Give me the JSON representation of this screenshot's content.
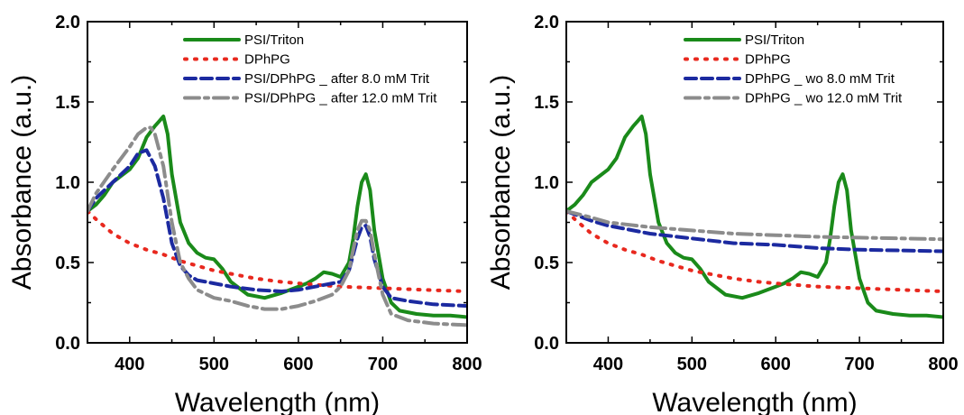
{
  "chart_data": [
    {
      "type": "line",
      "title": "",
      "xlabel": "Wavelength (nm)",
      "ylabel": "Absorbance (a.u.)",
      "xlim": [
        350,
        800
      ],
      "ylim": [
        0.0,
        2.0
      ],
      "xticks": [
        400,
        500,
        600,
        700,
        800
      ],
      "yticks": [
        "0.0",
        "0.5",
        "1.0",
        "1.5",
        "2.0"
      ],
      "grid": false,
      "legend_position": "top-right",
      "series": [
        {
          "name": "PSI/Triton",
          "color": "#1a8a1a",
          "style": "solid",
          "x": [
            350,
            360,
            370,
            380,
            390,
            400,
            410,
            420,
            430,
            435,
            440,
            445,
            450,
            460,
            470,
            480,
            490,
            500,
            510,
            520,
            540,
            560,
            580,
            600,
            610,
            620,
            630,
            640,
            650,
            660,
            665,
            670,
            675,
            680,
            685,
            690,
            700,
            710,
            720,
            740,
            760,
            780,
            800
          ],
          "y": [
            0.82,
            0.86,
            0.92,
            1.0,
            1.04,
            1.08,
            1.15,
            1.28,
            1.35,
            1.38,
            1.41,
            1.3,
            1.05,
            0.75,
            0.62,
            0.56,
            0.53,
            0.52,
            0.46,
            0.38,
            0.3,
            0.28,
            0.31,
            0.35,
            0.37,
            0.4,
            0.44,
            0.43,
            0.41,
            0.5,
            0.65,
            0.85,
            1.0,
            1.05,
            0.95,
            0.7,
            0.4,
            0.25,
            0.2,
            0.18,
            0.17,
            0.17,
            0.16
          ]
        },
        {
          "name": "DPhPG",
          "color": "#e8281e",
          "style": "dotted",
          "x": [
            350,
            360,
            380,
            400,
            420,
            440,
            460,
            480,
            500,
            520,
            550,
            580,
            600,
            650,
            700,
            750,
            800
          ],
          "y": [
            0.82,
            0.77,
            0.68,
            0.62,
            0.58,
            0.55,
            0.51,
            0.48,
            0.45,
            0.43,
            0.4,
            0.38,
            0.37,
            0.35,
            0.34,
            0.33,
            0.32
          ]
        },
        {
          "name": "PSI/DPhPG _ after 8.0 mM Trit",
          "color": "#1c2aa0",
          "style": "dashed",
          "x": [
            350,
            360,
            380,
            400,
            410,
            420,
            430,
            440,
            450,
            460,
            470,
            480,
            500,
            520,
            550,
            580,
            600,
            620,
            640,
            650,
            660,
            665,
            670,
            675,
            680,
            685,
            690,
            700,
            710,
            730,
            760,
            800
          ],
          "y": [
            0.82,
            0.9,
            1.0,
            1.1,
            1.18,
            1.2,
            1.1,
            0.9,
            0.62,
            0.48,
            0.42,
            0.39,
            0.37,
            0.35,
            0.33,
            0.32,
            0.33,
            0.35,
            0.37,
            0.38,
            0.45,
            0.55,
            0.65,
            0.72,
            0.73,
            0.66,
            0.52,
            0.35,
            0.28,
            0.26,
            0.24,
            0.23
          ]
        },
        {
          "name": "PSI/DPhPG _ after 12.0 mM Trit",
          "color": "#8c8c8c",
          "style": "dashdot",
          "x": [
            350,
            360,
            380,
            400,
            410,
            420,
            425,
            430,
            440,
            450,
            460,
            470,
            480,
            500,
            520,
            540,
            560,
            580,
            600,
            620,
            640,
            650,
            660,
            665,
            670,
            675,
            680,
            685,
            690,
            700,
            710,
            730,
            760,
            800
          ],
          "y": [
            0.82,
            0.93,
            1.08,
            1.22,
            1.3,
            1.34,
            1.34,
            1.3,
            1.1,
            0.75,
            0.5,
            0.4,
            0.33,
            0.28,
            0.26,
            0.23,
            0.21,
            0.21,
            0.23,
            0.26,
            0.3,
            0.35,
            0.45,
            0.58,
            0.7,
            0.76,
            0.76,
            0.7,
            0.55,
            0.3,
            0.18,
            0.14,
            0.12,
            0.11
          ]
        }
      ]
    },
    {
      "type": "line",
      "title": "",
      "xlabel": "Wavelength (nm)",
      "ylabel": "Absorbance (a.u.)",
      "xlim": [
        350,
        800
      ],
      "ylim": [
        0.0,
        2.0
      ],
      "xticks": [
        400,
        500,
        600,
        700,
        800
      ],
      "yticks": [
        "0.0",
        "0.5",
        "1.0",
        "1.5",
        "2.0"
      ],
      "grid": false,
      "legend_position": "top-right",
      "series": [
        {
          "name": "PSI/Triton",
          "color": "#1a8a1a",
          "style": "solid",
          "x": [
            350,
            360,
            370,
            380,
            390,
            400,
            410,
            420,
            430,
            435,
            440,
            445,
            450,
            460,
            470,
            480,
            490,
            500,
            510,
            520,
            540,
            560,
            580,
            600,
            610,
            620,
            630,
            640,
            650,
            660,
            665,
            670,
            675,
            680,
            685,
            690,
            700,
            710,
            720,
            740,
            760,
            780,
            800
          ],
          "y": [
            0.82,
            0.86,
            0.92,
            1.0,
            1.04,
            1.08,
            1.15,
            1.28,
            1.35,
            1.38,
            1.41,
            1.3,
            1.05,
            0.75,
            0.62,
            0.56,
            0.53,
            0.52,
            0.46,
            0.38,
            0.3,
            0.28,
            0.31,
            0.35,
            0.37,
            0.4,
            0.44,
            0.43,
            0.41,
            0.5,
            0.65,
            0.85,
            1.0,
            1.05,
            0.95,
            0.7,
            0.4,
            0.25,
            0.2,
            0.18,
            0.17,
            0.17,
            0.16
          ]
        },
        {
          "name": "DPhPG",
          "color": "#e8281e",
          "style": "dotted",
          "x": [
            350,
            360,
            380,
            400,
            420,
            440,
            460,
            480,
            500,
            520,
            550,
            580,
            600,
            650,
            700,
            750,
            800
          ],
          "y": [
            0.82,
            0.77,
            0.68,
            0.62,
            0.58,
            0.55,
            0.51,
            0.48,
            0.45,
            0.43,
            0.4,
            0.38,
            0.37,
            0.35,
            0.34,
            0.33,
            0.32
          ]
        },
        {
          "name": "DPhPG _ wo 8.0 mM Trit",
          "color": "#1c2aa0",
          "style": "dashed",
          "x": [
            350,
            380,
            400,
            450,
            500,
            550,
            600,
            650,
            700,
            750,
            800
          ],
          "y": [
            0.82,
            0.76,
            0.73,
            0.68,
            0.65,
            0.62,
            0.61,
            0.59,
            0.58,
            0.575,
            0.57
          ]
        },
        {
          "name": "DPhPG _ wo 12.0 mM Trit",
          "color": "#8c8c8c",
          "style": "dashdot",
          "x": [
            350,
            380,
            400,
            450,
            500,
            550,
            600,
            650,
            700,
            750,
            800
          ],
          "y": [
            0.82,
            0.78,
            0.75,
            0.72,
            0.7,
            0.68,
            0.67,
            0.66,
            0.655,
            0.65,
            0.645
          ]
        }
      ]
    }
  ]
}
